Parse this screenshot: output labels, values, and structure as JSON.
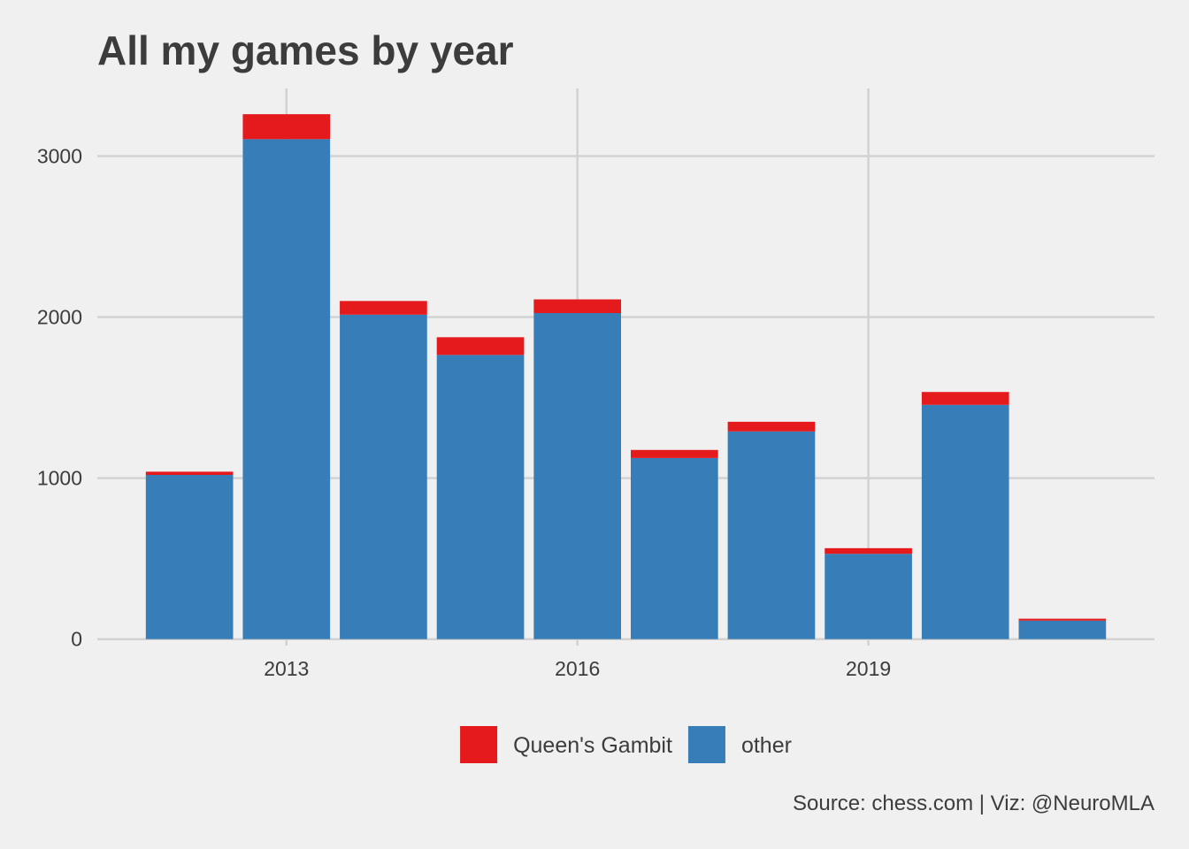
{
  "chart_data": {
    "type": "bar",
    "stacked": true,
    "title": "All my games by year",
    "caption": "Source: chess.com | Viz: @NeuroMLA",
    "xlabel": "",
    "ylabel": "",
    "categories": [
      2012,
      2013,
      2014,
      2015,
      2016,
      2017,
      2018,
      2019,
      2020,
      2021
    ],
    "x_ticks": [
      2013,
      2016,
      2019
    ],
    "y_ticks": [
      0,
      1000,
      2000,
      3000
    ],
    "xlim": [
      2011.05,
      2021.95
    ],
    "ylim": [
      -40,
      3420
    ],
    "grid": true,
    "legend_position": "bottom",
    "series": [
      {
        "name": "other",
        "color": "#377eb8",
        "values": [
          1020,
          3105,
          2015,
          1765,
          2025,
          1125,
          1290,
          530,
          1455,
          115
        ]
      },
      {
        "name": "Queen's Gambit",
        "color": "#e41a1c",
        "values": [
          20,
          155,
          85,
          110,
          85,
          50,
          60,
          35,
          80,
          12
        ]
      }
    ],
    "legend": [
      "Queen's Gambit",
      "other"
    ]
  }
}
